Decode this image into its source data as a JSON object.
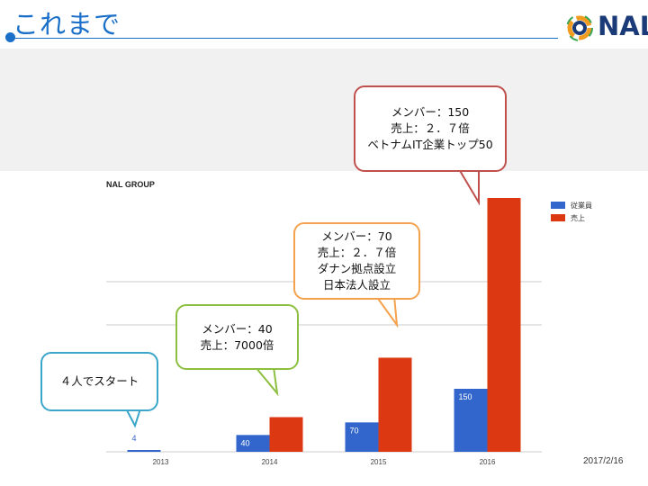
{
  "slide": {
    "title": "これまで",
    "logo_text": "NAL",
    "date": "2017/2/16"
  },
  "colors": {
    "accent": "#1a6fc9",
    "employees": "#3366cc",
    "sales": "#dc3912",
    "callout_2013": "#3aa6c9",
    "callout_2014": "#8cbf3f",
    "callout_2015": "#f4a24d",
    "callout_2016": "#c0504d"
  },
  "callouts": {
    "c2013": "４人でスタート",
    "c2014": "メンバー：40\n売上：7000倍",
    "c2015": "メンバー：70\n売上：２．７倍\nダナン拠点設立\n日本法人設立",
    "c2016": "メンバー：150\n売上：２．７倍\nベトナムIT企業トップ50"
  },
  "chart_data": {
    "type": "bar",
    "title": "NAL GROUP",
    "categories": [
      "2013",
      "2014",
      "2015",
      "2016"
    ],
    "series": [
      {
        "name": "従業員",
        "values": [
          4,
          40,
          70,
          150
        ],
        "labels": [
          "4",
          "40",
          "70",
          "150"
        ]
      },
      {
        "name": "売上",
        "values": [
          0.0004,
          2.8,
          7.6,
          20.5
        ]
      }
    ],
    "grid": true,
    "legend": "right"
  }
}
